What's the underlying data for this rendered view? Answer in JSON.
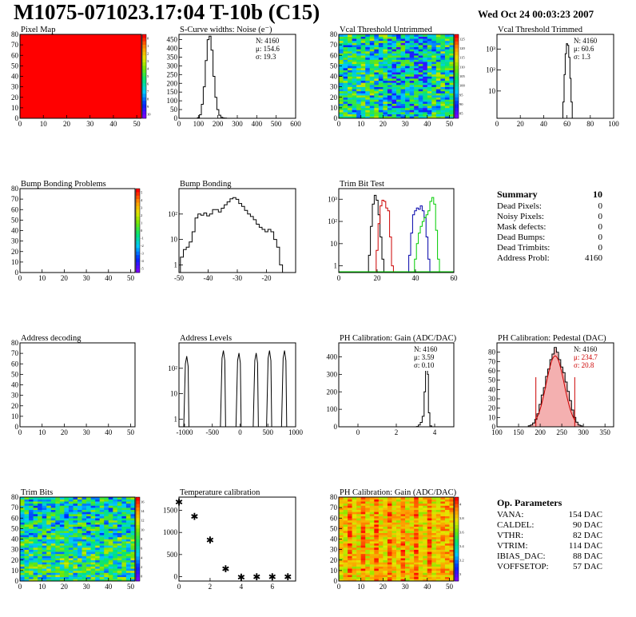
{
  "header": {
    "title": "M1075-071023.17:04 T-10b (C15)",
    "date": "Wed Oct 24 00:03:23 2007"
  },
  "summary": {
    "title": "Summary",
    "value": "10",
    "rows": [
      {
        "label": "Dead Pixels:",
        "value": "0"
      },
      {
        "label": "Noisy Pixels:",
        "value": "0"
      },
      {
        "label": "Mask defects:",
        "value": "0"
      },
      {
        "label": "Dead Bumps:",
        "value": "0"
      },
      {
        "label": "Dead Trimbits:",
        "value": "0"
      },
      {
        "label": "Address Probl:",
        "value": "4160"
      }
    ]
  },
  "op_params": {
    "title": "Op. Parameters",
    "rows": [
      {
        "label": "VANA:",
        "value": "154 DAC"
      },
      {
        "label": "CALDEL:",
        "value": "90 DAC"
      },
      {
        "label": "VTHR:",
        "value": "82 DAC"
      },
      {
        "label": "VTRIM:",
        "value": "114 DAC"
      },
      {
        "label": "IBIAS_DAC:",
        "value": "88 DAC"
      },
      {
        "label": "VOFFSETOP:",
        "value": "57 DAC"
      }
    ]
  },
  "colors": {
    "hist_line": "#000000",
    "red": "#cc0000",
    "blue": "#0000aa",
    "green": "#00cc00",
    "pixel_red": "#ff0000"
  },
  "chart_data": [
    {
      "id": "pixel-map",
      "type": "heatmap",
      "title": "Pixel Map",
      "xlim": [
        0,
        52
      ],
      "ylim": [
        0,
        80
      ],
      "xticks": [
        0,
        10,
        20,
        30,
        40,
        50
      ],
      "yticks": [
        0,
        10,
        20,
        30,
        40,
        50,
        60,
        70,
        80
      ],
      "fill": "uniform",
      "value": 10,
      "zlim": [
        0,
        10
      ],
      "zticks": [
        "0",
        "1",
        "2",
        "3",
        "4",
        "5",
        "6",
        "7",
        "8",
        "9",
        "10"
      ]
    },
    {
      "id": "scurve",
      "type": "line",
      "title": "S-Curve widths: Noise (e⁻)",
      "xlim": [
        0,
        600
      ],
      "ylim": [
        0,
        480
      ],
      "xticks": [
        0,
        100,
        200,
        300,
        400,
        500,
        600
      ],
      "yticks": [
        0,
        50,
        100,
        150,
        200,
        250,
        300,
        350,
        400,
        450
      ],
      "stats": [
        "N: 4160",
        "μ: 154.6",
        "σ: 19.3"
      ],
      "x": [
        90,
        100,
        110,
        120,
        130,
        140,
        150,
        160,
        170,
        180,
        190,
        200,
        210,
        220,
        230,
        240,
        250
      ],
      "y": [
        0,
        3,
        20,
        80,
        180,
        330,
        450,
        470,
        390,
        240,
        120,
        50,
        18,
        6,
        2,
        1,
        0
      ]
    },
    {
      "id": "vcal-untrimmed",
      "type": "heatmap",
      "title": "Vcal Threshold Untrimmed",
      "xlim": [
        0,
        52
      ],
      "ylim": [
        0,
        80
      ],
      "xticks": [
        0,
        10,
        20,
        30,
        40,
        50
      ],
      "yticks": [
        0,
        10,
        20,
        30,
        40,
        50,
        60,
        70,
        80
      ],
      "fill": "noise",
      "center": 105,
      "spread": 10,
      "zlim": [
        80,
        130
      ],
      "zticks": [
        "125",
        "120",
        "115",
        "110",
        "105",
        "100",
        "95",
        "90",
        "85"
      ]
    },
    {
      "id": "vcal-trimmed",
      "type": "line",
      "log": true,
      "title": "Vcal Threshold Trimmed",
      "xlim": [
        0,
        100
      ],
      "ylim": [
        0.5,
        5000
      ],
      "xticks": [
        0,
        20,
        40,
        60,
        80,
        100
      ],
      "ytickvals": [
        10,
        100,
        1000
      ],
      "yticklabels": [
        "10",
        "10²",
        "10³"
      ],
      "stats": [
        "N: 4160",
        "μ: 60.6",
        "σ:  1.3"
      ],
      "x": [
        56,
        57,
        58,
        59,
        60,
        61,
        62,
        63,
        64,
        65
      ],
      "y": [
        0.5,
        3,
        60,
        600,
        1800,
        1500,
        400,
        40,
        3,
        0.5
      ]
    },
    {
      "id": "bump-problems",
      "type": "heatmap",
      "title": "Bump Bonding Problems",
      "xlim": [
        0,
        52
      ],
      "ylim": [
        0,
        80
      ],
      "xticks": [
        0,
        10,
        20,
        30,
        40,
        50
      ],
      "yticks": [
        0,
        10,
        20,
        30,
        40,
        50,
        60,
        70,
        80
      ],
      "fill": "none",
      "zlim": [
        -5,
        5
      ],
      "zticks": [
        "5",
        "4",
        "3",
        "2",
        "1",
        "0",
        "-1",
        "-2",
        "-3",
        "-4",
        "-5"
      ]
    },
    {
      "id": "bump-bonding",
      "type": "line",
      "log": true,
      "title": "Bump Bonding",
      "xlim": [
        -50,
        -10
      ],
      "ylim": [
        0.5,
        1000
      ],
      "xticks": [
        -50,
        -40,
        -30,
        -20
      ],
      "ytickvals": [
        1,
        10,
        100
      ],
      "yticklabels": [
        "1",
        "10",
        "10²"
      ],
      "x": [
        -49,
        -48,
        -47,
        -46,
        -45,
        -44,
        -43,
        -42,
        -41,
        -40,
        -39,
        -38,
        -37,
        -36,
        -35,
        -34,
        -33,
        -32,
        -31,
        -30,
        -29,
        -28,
        -27,
        -26,
        -25,
        -24,
        -23,
        -22,
        -21,
        -20,
        -19,
        -18,
        -17,
        -16,
        -15,
        -14
      ],
      "y": [
        2,
        4,
        5,
        8,
        20,
        70,
        100,
        90,
        110,
        85,
        100,
        150,
        150,
        120,
        170,
        230,
        300,
        400,
        440,
        380,
        260,
        200,
        140,
        100,
        80,
        60,
        40,
        30,
        25,
        20,
        25,
        20,
        10,
        5,
        1,
        0.5
      ]
    },
    {
      "id": "trim-bit-test",
      "type": "line",
      "log": true,
      "title": "Trim Bit Test",
      "xlim": [
        0,
        60
      ],
      "ylim": [
        0.5,
        3000
      ],
      "xticks": [
        0,
        20,
        40,
        60
      ],
      "ytickvals": [
        1,
        10,
        100,
        1000
      ],
      "yticklabels": [
        "1",
        "10",
        "10²",
        "10³"
      ],
      "series": [
        {
          "color": "#000000",
          "x": [
            15,
            16,
            17,
            18,
            19,
            20,
            21,
            22,
            23,
            24
          ],
          "y": [
            0.5,
            3,
            60,
            600,
            1500,
            900,
            200,
            20,
            2,
            0.5
          ]
        },
        {
          "color": "#cc0000",
          "x": [
            19,
            20,
            21,
            22,
            23,
            24,
            25,
            26,
            27,
            28,
            29
          ],
          "y": [
            0.5,
            5,
            80,
            500,
            900,
            800,
            400,
            300,
            20,
            1,
            0.5
          ]
        },
        {
          "color": "#0000aa",
          "x": [
            36,
            37,
            38,
            39,
            40,
            41,
            42,
            43,
            44,
            45,
            46,
            47,
            48
          ],
          "y": [
            0.5,
            3,
            30,
            200,
            300,
            400,
            350,
            500,
            300,
            150,
            20,
            2,
            0.5
          ]
        },
        {
          "color": "#00cc00",
          "x": [
            39,
            40,
            41,
            42,
            43,
            44,
            45,
            46,
            47,
            48,
            49,
            50,
            51,
            52,
            53
          ],
          "y": [
            0.5,
            2,
            10,
            30,
            60,
            100,
            150,
            200,
            300,
            800,
            1200,
            600,
            40,
            2,
            0.5
          ]
        }
      ]
    },
    {
      "id": "address-decoding",
      "type": "heatmap",
      "title": "Address decoding",
      "xlim": [
        0,
        52
      ],
      "ylim": [
        0,
        80
      ],
      "xticks": [
        0,
        10,
        20,
        30,
        40,
        50
      ],
      "yticks": [
        0,
        10,
        20,
        30,
        40,
        50,
        60,
        70,
        80
      ],
      "fill": "none"
    },
    {
      "id": "address-levels",
      "type": "line",
      "log": true,
      "title": "Address Levels",
      "xlim": [
        -1100,
        1000
      ],
      "ylim": [
        0.5,
        1000
      ],
      "xticks": [
        -1000,
        -500,
        0,
        500,
        1000
      ],
      "ytickvals": [
        1,
        10,
        100
      ],
      "yticklabels": [
        "1",
        "10",
        "10²"
      ],
      "peaks": [
        {
          "x": -960,
          "h": 300
        },
        {
          "x": -300,
          "h": 500
        },
        {
          "x": -20,
          "h": 400
        },
        {
          "x": 290,
          "h": 400
        },
        {
          "x": 530,
          "h": 500
        },
        {
          "x": 800,
          "h": 500
        }
      ]
    },
    {
      "id": "ph-gain",
      "type": "line",
      "title": "PH Calibration: Gain (ADC/DAC)",
      "xlim": [
        -1,
        5
      ],
      "ylim": [
        0,
        480
      ],
      "xticks": [
        0,
        2,
        4
      ],
      "yticks": [
        0,
        100,
        200,
        300,
        400
      ],
      "stats": [
        "N: 4160",
        "μ: 3.59",
        "σ: 0.10"
      ],
      "x": [
        3.0,
        3.1,
        3.2,
        3.3,
        3.4,
        3.5,
        3.55,
        3.6,
        3.65,
        3.7,
        3.8,
        3.9
      ],
      "y": [
        0,
        2,
        10,
        25,
        60,
        200,
        380,
        440,
        300,
        80,
        5,
        0
      ]
    },
    {
      "id": "ph-pedestal",
      "type": "line",
      "title": "PH Calibration: Pedestal (DAC)",
      "xlim": [
        100,
        370
      ],
      "ylim": [
        0,
        90
      ],
      "xticks": [
        100,
        150,
        200,
        250,
        300,
        350
      ],
      "yticks": [
        0,
        10,
        20,
        30,
        40,
        50,
        60,
        70,
        80
      ],
      "stats": [
        "N: 4160",
        "μ: 234.7",
        "σ: 20.8"
      ],
      "stat_colors": [
        "#000000",
        "#cc0000",
        "#cc0000"
      ],
      "fit": {
        "mu": 234.7,
        "sigma": 20.8,
        "amp": 76,
        "range": [
          190,
          280
        ]
      },
      "x": [
        170,
        175,
        180,
        185,
        190,
        195,
        200,
        205,
        210,
        215,
        220,
        225,
        230,
        235,
        240,
        245,
        250,
        255,
        260,
        265,
        270,
        275,
        280,
        285,
        290,
        295,
        300
      ],
      "y": [
        0,
        1,
        2,
        4,
        8,
        14,
        24,
        34,
        42,
        54,
        62,
        72,
        78,
        85,
        80,
        72,
        64,
        58,
        48,
        38,
        28,
        18,
        10,
        5,
        2,
        1,
        0
      ]
    },
    {
      "id": "trim-bits",
      "type": "heatmap",
      "title": "Trim Bits",
      "xlim": [
        0,
        52
      ],
      "ylim": [
        0,
        80
      ],
      "xticks": [
        0,
        10,
        20,
        30,
        40,
        50
      ],
      "yticks": [
        0,
        10,
        20,
        30,
        40,
        50,
        60,
        70,
        80
      ],
      "fill": "noise",
      "center": 9,
      "spread": 2,
      "zlim": [
        0,
        16
      ],
      "zticks": [
        "16",
        "14",
        "12",
        "10",
        "8",
        "6",
        "4",
        "2",
        "0"
      ]
    },
    {
      "id": "temp-cal",
      "type": "scatter",
      "title": "Temperature calibration",
      "xlim": [
        0,
        7.5
      ],
      "ylim": [
        -100,
        1800
      ],
      "xticks": [
        0,
        2,
        4,
        6
      ],
      "yticks": [
        0,
        500,
        1000,
        1500
      ],
      "x": [
        0,
        1,
        2,
        3,
        4,
        5,
        6,
        7
      ],
      "y": [
        1680,
        1360,
        820,
        170,
        -20,
        -10,
        -10,
        -10
      ]
    },
    {
      "id": "ph-gain-map",
      "type": "heatmap",
      "title": "PH Calibration: Gain (ADC/DAC)",
      "xlim": [
        0,
        52
      ],
      "ylim": [
        0,
        80
      ],
      "xticks": [
        0,
        10,
        20,
        30,
        40,
        50
      ],
      "yticks": [
        0,
        10,
        20,
        30,
        40,
        50,
        60,
        70,
        80
      ],
      "fill": "stripes",
      "zlim": [
        3,
        4
      ],
      "zticks": [
        "4",
        "3.8",
        "3.6",
        "3.4",
        "3.2",
        "3"
      ]
    }
  ]
}
